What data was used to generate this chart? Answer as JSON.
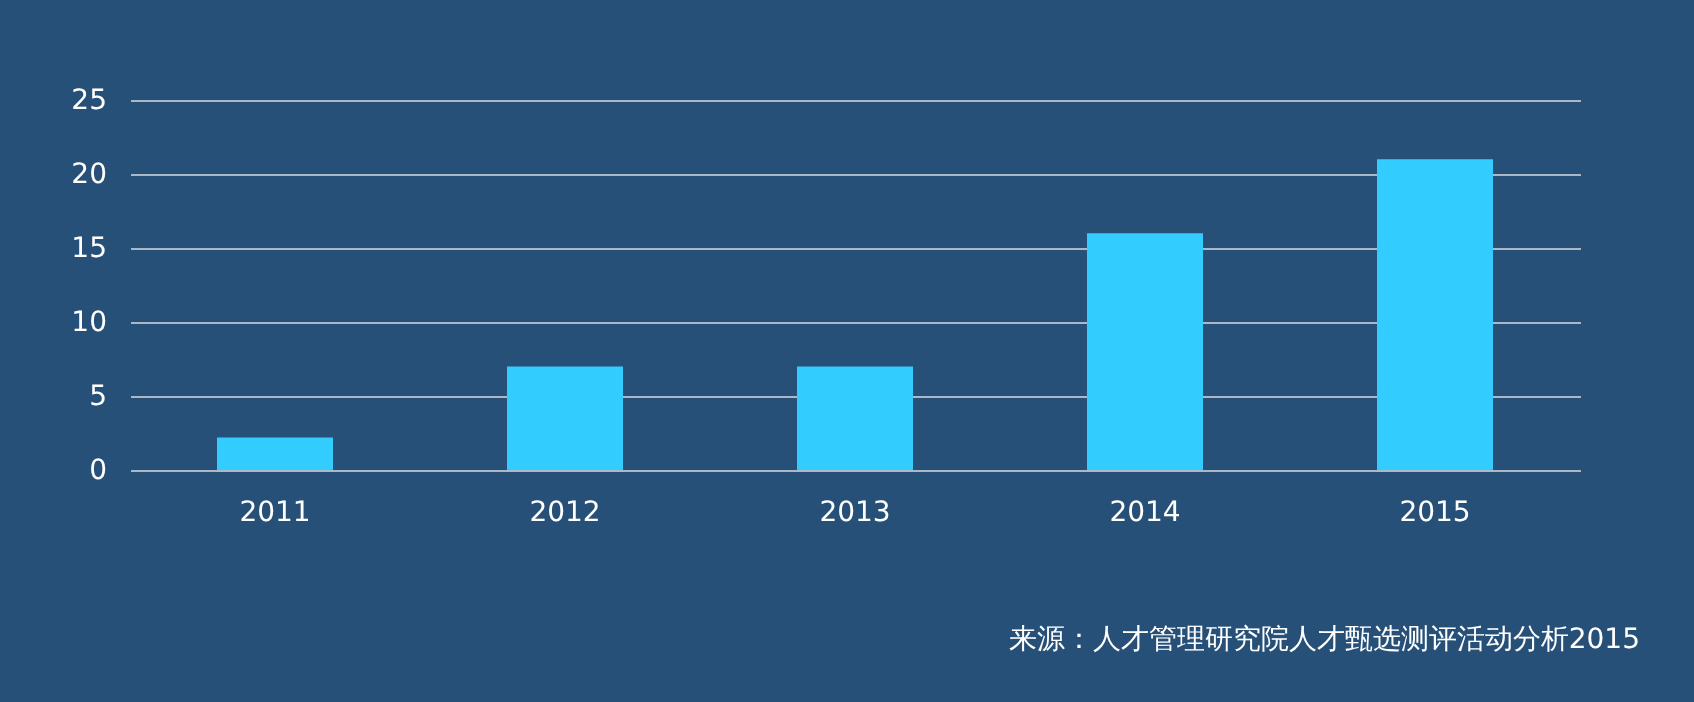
{
  "chart_data": {
    "type": "bar",
    "categories": [
      "2011",
      "2012",
      "2013",
      "2014",
      "2015"
    ],
    "values": [
      2.2,
      7,
      7,
      16,
      21
    ],
    "color": "#33ccff",
    "ylim": [
      0,
      25
    ],
    "yticks": [
      0,
      5,
      10,
      15,
      20,
      25
    ],
    "grid": "y",
    "annotations": [
      "来源：人才管理研究院人才甄选测评活动分析2015"
    ]
  }
}
